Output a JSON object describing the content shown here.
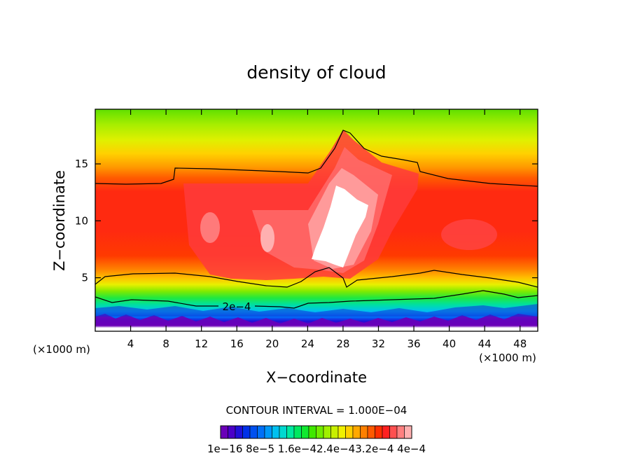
{
  "chart_data": {
    "type": "heatmap",
    "title": "density of cloud",
    "xlabel": "X−coordinate",
    "ylabel": "Z−coordinate",
    "x_units_left": "(×1000 m)",
    "x_units_right": "(×1000 m)",
    "xlim": [
      0,
      50
    ],
    "ylim": [
      0.3,
      19.8
    ],
    "x_ticks": [
      4,
      8,
      12,
      16,
      20,
      24,
      28,
      32,
      36,
      40,
      44,
      48
    ],
    "x_tick_labels": [
      "4",
      "8",
      "12",
      "16",
      "20",
      "24",
      "28",
      "32",
      "36",
      "40",
      "44",
      "48"
    ],
    "y_ticks": [
      5,
      10,
      15
    ],
    "y_tick_labels": [
      "5",
      "10",
      "15"
    ],
    "contour_label": "2e−4",
    "contour_interval_text": "CONTOUR INTERVAL = 1.000E−04",
    "colorbar": {
      "levels": 24,
      "tick_labels": [
        "1e−16",
        "8e−5",
        "1.6e−4",
        "2.4e−4",
        "3.2e−4",
        "4e−4"
      ],
      "tick_label_text": "1e−16 8e−5 1.6e−42.4e−43.2e−4 4e−4",
      "colors": [
        "#6a00b8",
        "#4a00c8",
        "#2010d8",
        "#0030e8",
        "#0050f0",
        "#0070f8",
        "#0098f8",
        "#00c0f0",
        "#00d8d0",
        "#00e8a0",
        "#00e860",
        "#10e830",
        "#40e800",
        "#70ec00",
        "#a0f000",
        "#c8f000",
        "#f0f000",
        "#ffd000",
        "#ffa800",
        "#ff8000",
        "#ff5a00",
        "#ff3000",
        "#ff2020",
        "#ff5050",
        "#ff8080",
        "#ffb0b0"
      ]
    },
    "colors": {
      "high_core": "#ffffff",
      "contour_line": "#000000"
    }
  }
}
